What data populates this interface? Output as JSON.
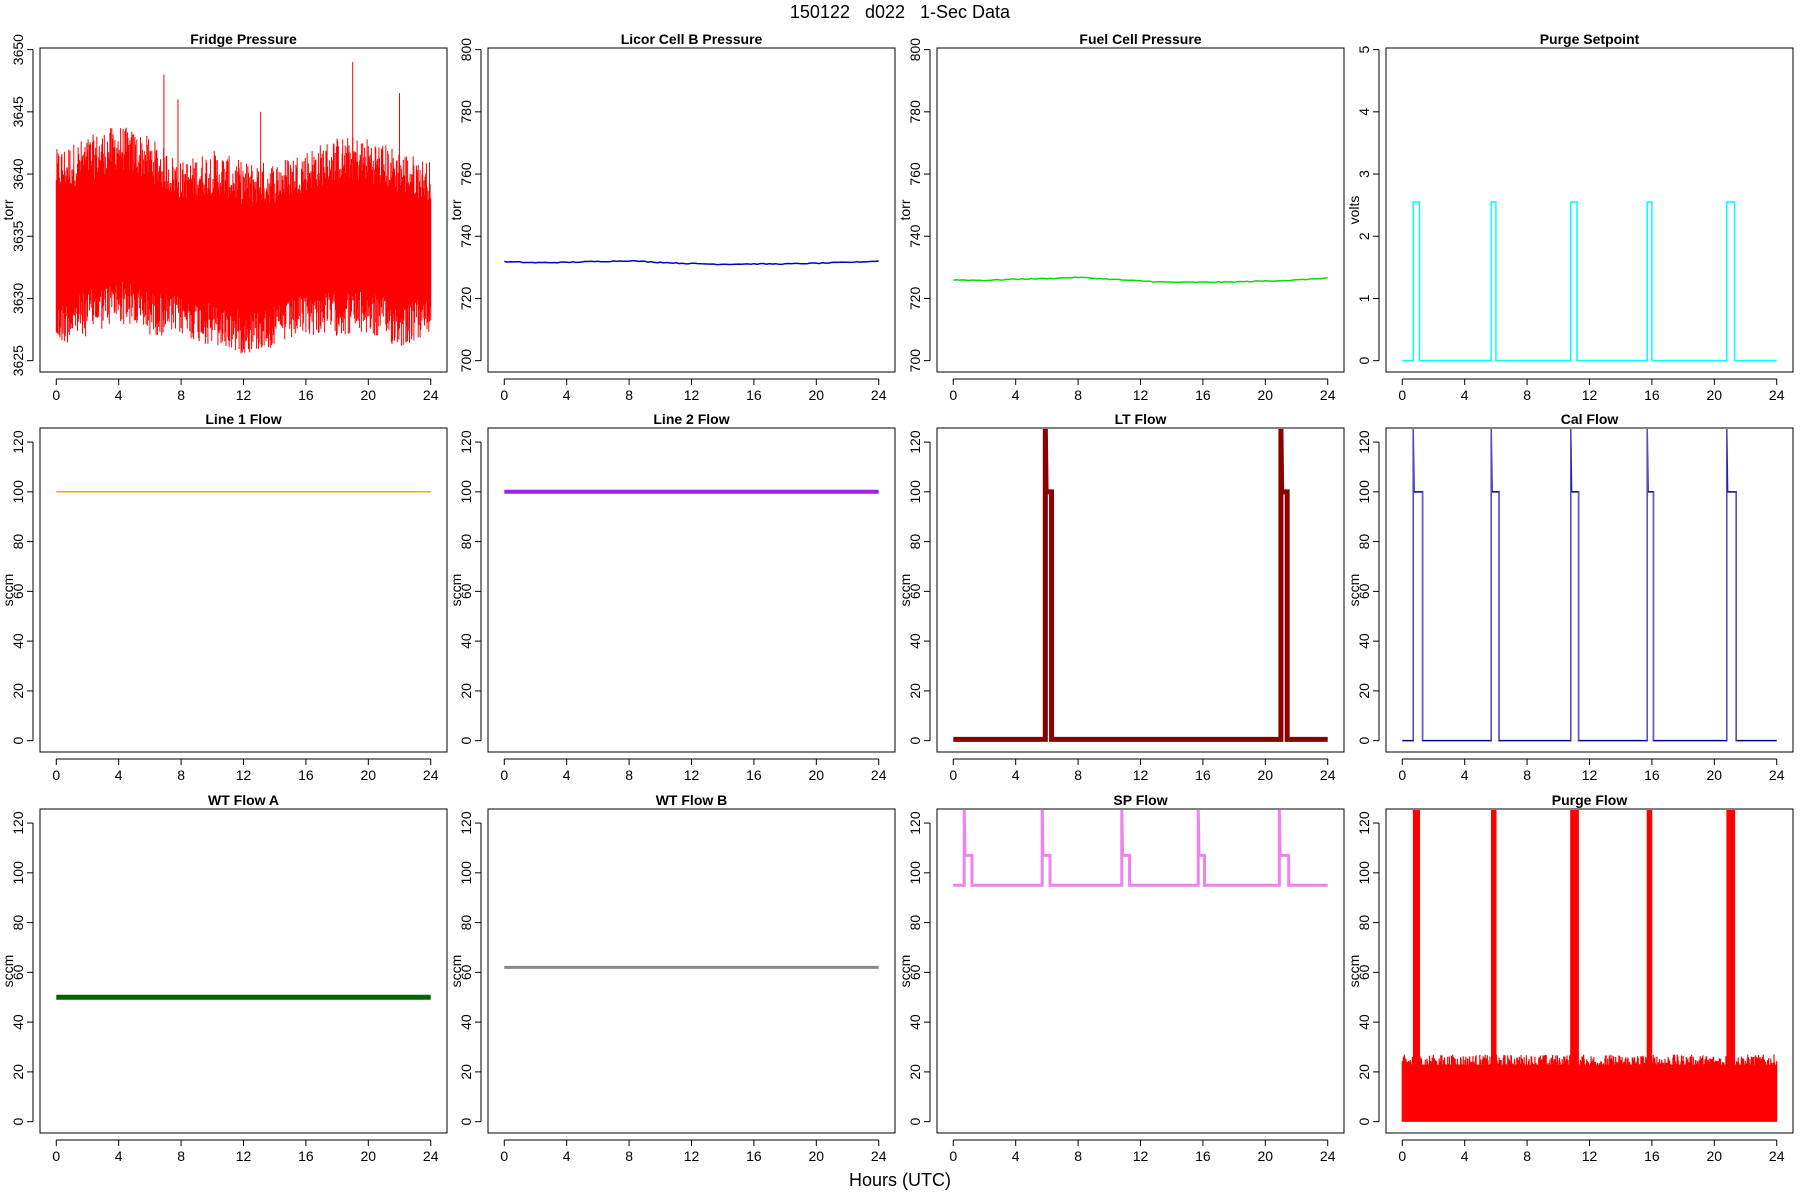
{
  "page": {
    "title": "150122   d022   1-Sec Data",
    "xlabel": "Hours (UTC)"
  },
  "chart_data": [
    {
      "type": "line",
      "title": "Fridge Pressure",
      "ylabel": "torr",
      "color": "#ff0000",
      "xlim": [
        0,
        24
      ],
      "xticks": [
        0,
        4,
        8,
        12,
        16,
        20,
        24
      ],
      "ylim": [
        3625,
        3650
      ],
      "yticks": [
        3625,
        3630,
        3635,
        3640,
        3645,
        3650
      ],
      "series": [
        {
          "pattern": "band",
          "x": [
            0,
            2,
            4,
            6,
            8,
            10,
            12,
            14,
            16,
            18,
            20,
            22,
            24
          ],
          "low": [
            3626,
            3627,
            3628,
            3627,
            3627,
            3626,
            3625.5,
            3626,
            3627,
            3627,
            3627,
            3626,
            3627
          ],
          "high": [
            3642,
            3643,
            3644,
            3643,
            3641,
            3642,
            3641,
            3641,
            3642,
            3643,
            3643,
            3642,
            3641
          ],
          "spikes": [
            {
              "x": 6.9,
              "y": 3648
            },
            {
              "x": 7.8,
              "y": 3646
            },
            {
              "x": 19.0,
              "y": 3649
            },
            {
              "x": 22.0,
              "y": 3646.5
            },
            {
              "x": 13.1,
              "y": 3645
            }
          ]
        }
      ]
    },
    {
      "type": "line",
      "title": "Licor Cell B Pressure",
      "ylabel": "torr",
      "color": "#0000cd",
      "xlim": [
        0,
        24
      ],
      "xticks": [
        0,
        4,
        8,
        12,
        16,
        20,
        24
      ],
      "ylim": [
        700,
        800
      ],
      "yticks": [
        700,
        720,
        740,
        760,
        780,
        800
      ],
      "series": [
        {
          "pattern": "line",
          "x": [
            0,
            2,
            4,
            6,
            8,
            10,
            12,
            14,
            16,
            18,
            20,
            22,
            24
          ],
          "y": [
            731.8,
            731.5,
            731.6,
            731.9,
            732.1,
            731.6,
            731.2,
            731.0,
            731.1,
            731.1,
            731.3,
            731.6,
            732.0
          ]
        }
      ]
    },
    {
      "type": "line",
      "title": "Fuel Cell Pressure",
      "ylabel": "torr",
      "color": "#00e000",
      "xlim": [
        0,
        24
      ],
      "xticks": [
        0,
        4,
        8,
        12,
        16,
        20,
        24
      ],
      "ylim": [
        700,
        800
      ],
      "yticks": [
        700,
        720,
        740,
        760,
        780,
        800
      ],
      "series": [
        {
          "pattern": "line",
          "x": [
            0,
            2,
            4,
            6,
            8,
            10,
            12,
            14,
            16,
            18,
            20,
            22,
            24
          ],
          "y": [
            726.0,
            725.8,
            726.2,
            726.4,
            726.8,
            726.2,
            725.6,
            725.2,
            725.2,
            725.3,
            725.6,
            725.9,
            726.6
          ]
        }
      ]
    },
    {
      "type": "line",
      "title": "Purge Setpoint",
      "ylabel": "volts",
      "color": "#00ffff",
      "xlim": [
        0,
        24
      ],
      "xticks": [
        0,
        4,
        8,
        12,
        16,
        20,
        24
      ],
      "ylim": [
        0,
        5
      ],
      "yticks": [
        0,
        1,
        2,
        3,
        4,
        5
      ],
      "series": [
        {
          "pattern": "pulses",
          "base": 0,
          "level": 2.55,
          "pulses": [
            [
              0.7,
              1.1
            ],
            [
              5.7,
              6.0
            ],
            [
              10.8,
              11.2
            ],
            [
              15.7,
              16.0
            ],
            [
              20.8,
              21.3
            ]
          ]
        }
      ]
    },
    {
      "type": "line",
      "title": "Line 1 Flow",
      "ylabel": "sccm",
      "color": "#ffa500",
      "xlim": [
        0,
        24
      ],
      "xticks": [
        0,
        4,
        8,
        12,
        16,
        20,
        24
      ],
      "ylim": [
        0,
        125
      ],
      "yticks": [
        0,
        20,
        40,
        60,
        80,
        100,
        120
      ],
      "series": [
        {
          "pattern": "line",
          "x": [
            0,
            24
          ],
          "y": [
            100,
            100
          ]
        }
      ]
    },
    {
      "type": "line",
      "title": "Line 2 Flow",
      "ylabel": "sccm",
      "color": "#a020f0",
      "xlim": [
        0,
        24
      ],
      "xticks": [
        0,
        4,
        8,
        12,
        16,
        20,
        24
      ],
      "ylim": [
        0,
        125
      ],
      "yticks": [
        0,
        20,
        40,
        60,
        80,
        100,
        120
      ],
      "series": [
        {
          "pattern": "line",
          "x": [
            0,
            24
          ],
          "y": [
            100,
            100
          ],
          "thickness": 4
        }
      ]
    },
    {
      "type": "line",
      "title": "LT Flow",
      "ylabel": "sccm",
      "color": "#8b0000",
      "xlim": [
        0,
        24
      ],
      "xticks": [
        0,
        4,
        8,
        12,
        16,
        20,
        24
      ],
      "ylim": [
        0,
        125
      ],
      "yticks": [
        0,
        20,
        40,
        60,
        80,
        100,
        120
      ],
      "series": [
        {
          "pattern": "pulses",
          "base": 0.5,
          "level": 100,
          "thickness": 5,
          "spikeTop": 130,
          "pulses": [
            [
              5.9,
              6.3
            ],
            [
              21.0,
              21.4
            ]
          ]
        }
      ]
    },
    {
      "type": "line",
      "title": "Cal Flow",
      "ylabel": "sccm",
      "color": "#00008b",
      "xlim": [
        0,
        24
      ],
      "xticks": [
        0,
        4,
        8,
        12,
        16,
        20,
        24
      ],
      "ylim": [
        0,
        125
      ],
      "yticks": [
        0,
        20,
        40,
        60,
        80,
        100,
        120
      ],
      "series": [
        {
          "pattern": "pulses",
          "base": 0,
          "level": 100,
          "spikeTop": 130,
          "spikeColor": "#6a5acd",
          "pulses": [
            [
              0.7,
              1.3
            ],
            [
              5.7,
              6.2
            ],
            [
              10.8,
              11.3
            ],
            [
              15.7,
              16.1
            ],
            [
              20.8,
              21.4
            ]
          ]
        }
      ]
    },
    {
      "type": "line",
      "title": "WT Flow A",
      "ylabel": "sccm",
      "color": "#006400",
      "xlim": [
        0,
        24
      ],
      "xticks": [
        0,
        4,
        8,
        12,
        16,
        20,
        24
      ],
      "ylim": [
        0,
        125
      ],
      "yticks": [
        0,
        20,
        40,
        60,
        80,
        100,
        120
      ],
      "series": [
        {
          "pattern": "line",
          "x": [
            0,
            24
          ],
          "y": [
            50,
            50
          ],
          "thickness": 5
        }
      ]
    },
    {
      "type": "line",
      "title": "WT Flow B",
      "ylabel": "sccm",
      "color": "#888888",
      "xlim": [
        0,
        24
      ],
      "xticks": [
        0,
        4,
        8,
        12,
        16,
        20,
        24
      ],
      "ylim": [
        0,
        125
      ],
      "yticks": [
        0,
        20,
        40,
        60,
        80,
        100,
        120
      ],
      "series": [
        {
          "pattern": "line",
          "x": [
            0,
            24
          ],
          "y": [
            62,
            62
          ],
          "thickness": 3
        }
      ]
    },
    {
      "type": "line",
      "title": "SP Flow",
      "ylabel": "sccm",
      "color": "#ee82ee",
      "xlim": [
        0,
        24
      ],
      "xticks": [
        0,
        4,
        8,
        12,
        16,
        20,
        24
      ],
      "ylim": [
        0,
        125
      ],
      "yticks": [
        0,
        20,
        40,
        60,
        80,
        100,
        120
      ],
      "series": [
        {
          "pattern": "pulses",
          "base": 95,
          "level": 107,
          "spikeTop": 130,
          "thickness": 3,
          "pulses": [
            [
              0.7,
              1.2
            ],
            [
              5.7,
              6.2
            ],
            [
              10.8,
              11.3
            ],
            [
              15.7,
              16.1
            ],
            [
              20.9,
              21.5
            ]
          ]
        }
      ]
    },
    {
      "type": "line",
      "title": "Purge Flow",
      "ylabel": "sccm",
      "color": "#ff0000",
      "xlim": [
        0,
        24
      ],
      "xticks": [
        0,
        4,
        8,
        12,
        16,
        20,
        24
      ],
      "ylim": [
        0,
        125
      ],
      "yticks": [
        0,
        20,
        40,
        60,
        80,
        100,
        120
      ],
      "series": [
        {
          "pattern": "noisyPulses",
          "low": 0,
          "high": 27,
          "level": 130,
          "pulses": [
            [
              0.7,
              1.1
            ],
            [
              5.7,
              6.0
            ],
            [
              10.8,
              11.3
            ],
            [
              15.7,
              16.0
            ],
            [
              20.8,
              21.3
            ]
          ]
        }
      ]
    }
  ]
}
